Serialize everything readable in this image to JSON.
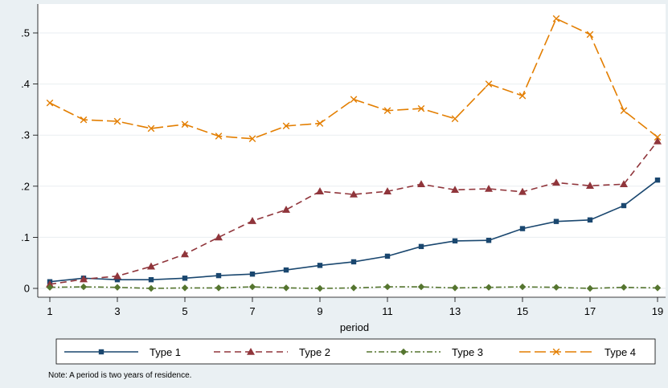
{
  "chart_data": {
    "type": "line",
    "title": "",
    "xlabel": "period",
    "ylabel": "",
    "x": [
      1,
      2,
      3,
      4,
      5,
      6,
      7,
      8,
      9,
      10,
      11,
      12,
      13,
      14,
      15,
      16,
      17,
      18,
      19
    ],
    "xticks": [
      "1",
      "3",
      "5",
      "7",
      "9",
      "11",
      "13",
      "15",
      "17",
      "19"
    ],
    "yticks": [
      "0",
      ".1",
      ".2",
      ".3",
      ".4",
      ".5"
    ],
    "xlim": [
      1,
      19
    ],
    "ylim": [
      0,
      0.5
    ],
    "grid": true,
    "legend_position": "bottom",
    "series": [
      {
        "name": "Type 1",
        "color": "#1a476f",
        "marker": "square",
        "dash": "solid",
        "values": [
          0.013,
          0.02,
          0.017,
          0.017,
          0.02,
          0.025,
          0.028,
          0.036,
          0.045,
          0.052,
          0.063,
          0.082,
          0.093,
          0.094,
          0.117,
          0.131,
          0.134,
          0.162,
          0.212
        ]
      },
      {
        "name": "Type 2",
        "color": "#90353b",
        "marker": "triangle",
        "dash": "dash",
        "values": [
          0.008,
          0.018,
          0.024,
          0.043,
          0.067,
          0.1,
          0.132,
          0.154,
          0.19,
          0.184,
          0.19,
          0.204,
          0.193,
          0.195,
          0.189,
          0.207,
          0.201,
          0.204,
          0.288
        ]
      },
      {
        "name": "Type 3",
        "color": "#55752f",
        "marker": "diamond",
        "dash": "dashdot",
        "values": [
          0.002,
          0.003,
          0.002,
          0.0,
          0.001,
          0.001,
          0.003,
          0.001,
          0.0,
          0.001,
          0.003,
          0.003,
          0.001,
          0.002,
          0.003,
          0.002,
          0.0,
          0.002,
          0.001
        ]
      },
      {
        "name": "Type 4",
        "color": "#e37e00",
        "marker": "x",
        "dash": "longdash",
        "values": [
          0.363,
          0.33,
          0.327,
          0.313,
          0.321,
          0.298,
          0.293,
          0.318,
          0.323,
          0.37,
          0.348,
          0.352,
          0.332,
          0.4,
          0.377,
          0.528,
          0.497,
          0.348,
          0.296
        ]
      }
    ],
    "note": "Note: A period is two years of residence."
  }
}
